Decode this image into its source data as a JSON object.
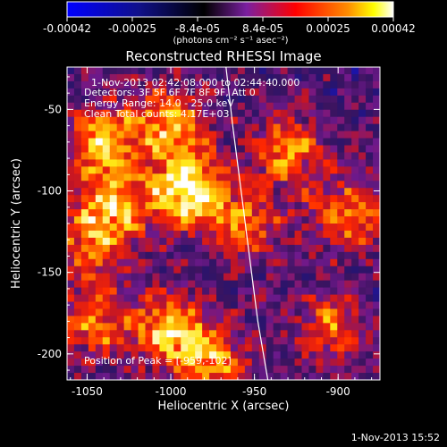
{
  "chart_data": {
    "type": "heatmap",
    "title": "Reconstructed RHESSI Image",
    "xlabel": "Heliocentric X (arcsec)",
    "ylabel": "Heliocentric Y (arcsec)",
    "xlim": [
      -1062,
      -875
    ],
    "ylim": [
      -216,
      -24
    ],
    "x_ticks": [
      -1050,
      -1000,
      -950,
      -900
    ],
    "y_ticks": [
      -50,
      -100,
      -150,
      -200
    ],
    "colorbar": {
      "ticks": [
        "-0.00042",
        "-0.00025",
        "-8.4e-05",
        "8.4e-05",
        "0.00025",
        "0.00042"
      ],
      "range": [
        -0.00042,
        0.00042
      ],
      "unit_label": "(photons cm⁻² s⁻¹ asec⁻²)",
      "colors": [
        "#0000ff",
        "#000000",
        "#7a1fa0",
        "#ff0000",
        "#ffff00",
        "#ffffff"
      ]
    },
    "info_lines": [
      "1-Nov-2013 02:42:08.000 to 02:44:40.000",
      "Detectors: 3F 5F 6F 7F 8F 9F, Att 0",
      "Energy Range: 14.0 - 25.0 keV",
      "Clean    Total counts: 4.17E+03"
    ],
    "peak_label": "Position of Peak = [-959,-102]",
    "peak": [
      -959,
      -102
    ],
    "limb_points": [
      [
        -967,
        -24
      ],
      [
        -963,
        -60
      ],
      [
        -958,
        -100
      ],
      [
        -953,
        -140
      ],
      [
        -948,
        -180
      ],
      [
        -942,
        -216
      ]
    ],
    "bright_regions": [
      {
        "x": -990,
        "y": -100,
        "intensity": 1.0
      },
      {
        "x": -1040,
        "y": -70,
        "intensity": 0.75
      },
      {
        "x": -1035,
        "y": -110,
        "intensity": 0.7
      },
      {
        "x": -1000,
        "y": -60,
        "intensity": 0.7
      },
      {
        "x": -930,
        "y": -75,
        "intensity": 0.6
      },
      {
        "x": -955,
        "y": -120,
        "intensity": 0.55
      },
      {
        "x": -1000,
        "y": -185,
        "intensity": 0.75
      },
      {
        "x": -1045,
        "y": -180,
        "intensity": 0.6
      },
      {
        "x": -975,
        "y": -205,
        "intensity": 0.65
      },
      {
        "x": -895,
        "y": -115,
        "intensity": 0.6
      },
      {
        "x": -905,
        "y": -185,
        "intensity": 0.55
      },
      {
        "x": -1050,
        "y": -135,
        "intensity": 0.5
      }
    ]
  },
  "footer": {
    "timestamp": "1-Nov-2013 15:52"
  }
}
